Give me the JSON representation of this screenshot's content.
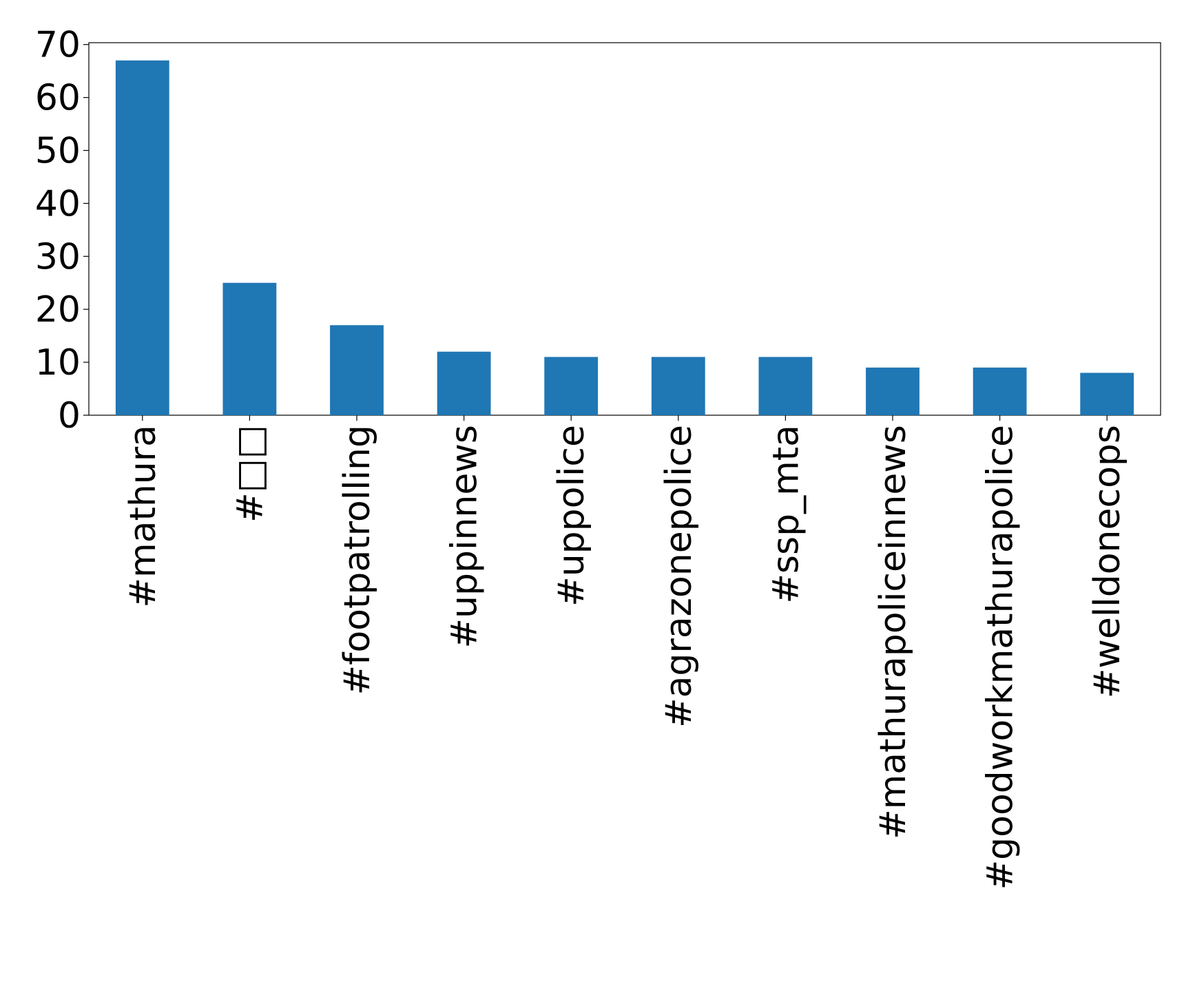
{
  "chart_data": {
    "type": "bar",
    "categories": [
      "#mathura",
      "#□□",
      "#footpatrolling",
      "#uppinnews",
      "#uppolice",
      "#agrazonepolice",
      "#ssp_mta",
      "#mathurapoliceinnews",
      "#goodworkmathurapolice",
      "#welldonecops"
    ],
    "values": [
      67,
      25,
      17,
      12,
      11,
      11,
      11,
      9,
      9,
      8
    ],
    "color": "#1f77b4",
    "ylim": [
      0,
      70.35
    ],
    "yticks": [
      0,
      10,
      20,
      30,
      40,
      50,
      60,
      70
    ],
    "grid": false
  }
}
